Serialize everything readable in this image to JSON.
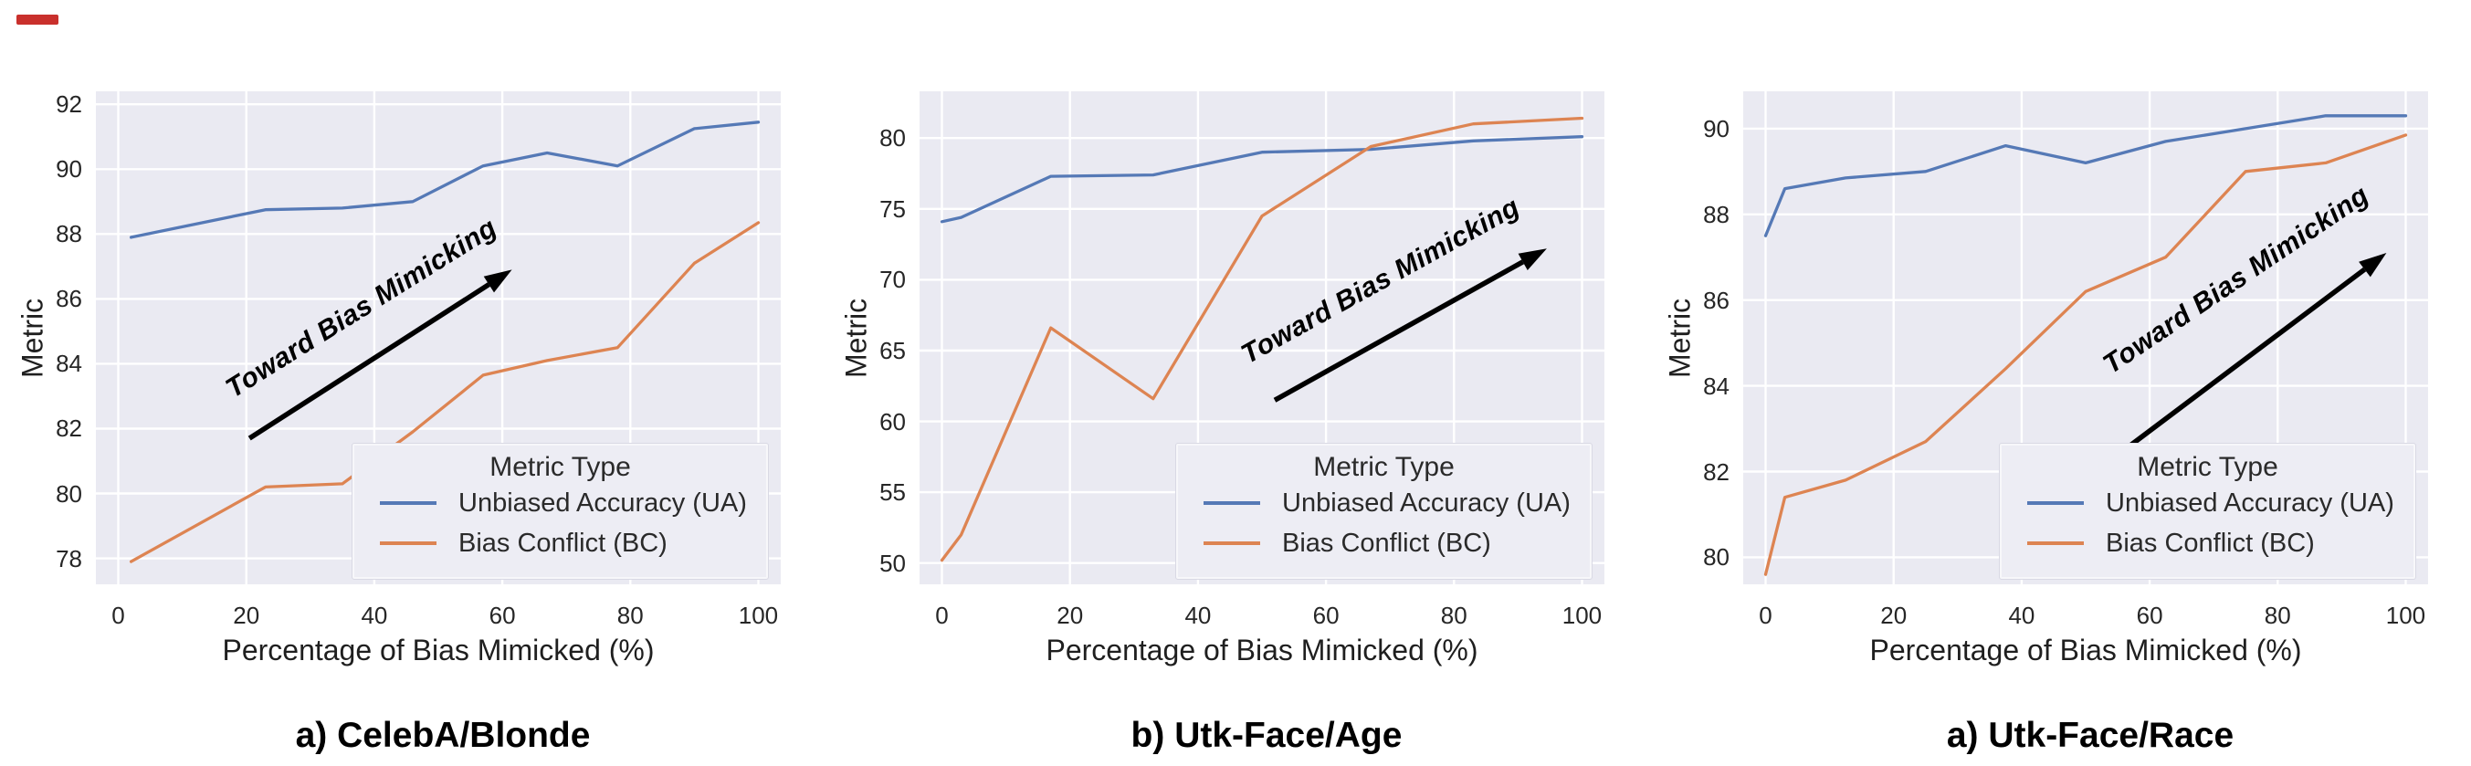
{
  "figure": {
    "background": "#ffffff",
    "plot_background": "#eaeaf2",
    "grid_color": "#ffffff",
    "arrow_color": "#000000",
    "corner_mark_color": "#c9302c",
    "accent_blue": "#5579b6",
    "accent_orange": "#dd8452"
  },
  "chart_data": [
    {
      "type": "line",
      "title": "a) CelebA/Blonde",
      "xlabel": "Percentage of Bias Mimicked (%)",
      "ylabel": "Metric",
      "xticks": [
        0,
        20,
        40,
        60,
        80,
        100
      ],
      "yticks": [
        78,
        80,
        82,
        84,
        86,
        88,
        90,
        92
      ],
      "xlim": [
        -3.5,
        103.5
      ],
      "ylim": [
        77.2,
        92.4
      ],
      "grid": "on",
      "legend": {
        "title": "Metric Type",
        "position": "lower right",
        "entries": [
          {
            "label": "Unbiased Accuracy (UA)",
            "color": "#5579b6"
          },
          {
            "label": "Bias Conflict (BC)",
            "color": "#dd8452"
          }
        ]
      },
      "annotation": {
        "text": "Toward Bias Mimicking",
        "arrow": [
          20.5,
          81.7,
          61.5,
          86.9
        ],
        "text_center": [
          38,
          85.55
        ],
        "angle_deg": -32
      },
      "series": [
        {
          "name": "Unbiased Accuracy (UA)",
          "color": "#5579b6",
          "x": [
            2,
            23,
            35,
            46,
            57,
            67,
            78,
            90,
            100
          ],
          "y": [
            87.9,
            88.75,
            88.8,
            89.0,
            90.1,
            90.5,
            90.1,
            91.25,
            91.45
          ]
        },
        {
          "name": "Bias Conflict (BC)",
          "color": "#dd8452",
          "x": [
            2,
            23,
            35,
            46,
            57,
            67,
            78,
            90,
            100
          ],
          "y": [
            77.9,
            80.2,
            80.3,
            81.9,
            83.65,
            84.1,
            84.5,
            87.1,
            88.35
          ]
        }
      ]
    },
    {
      "type": "line",
      "title": "b) Utk-Face/Age",
      "xlabel": "Percentage of Bias Mimicked (%)",
      "ylabel": "Metric",
      "xticks": [
        0,
        20,
        40,
        60,
        80,
        100
      ],
      "yticks": [
        50,
        55,
        60,
        65,
        70,
        75,
        80
      ],
      "xlim": [
        -3.5,
        103.5
      ],
      "ylim": [
        48.5,
        83.3
      ],
      "grid": "on",
      "legend": {
        "title": "Metric Type",
        "position": "lower right",
        "entries": [
          {
            "label": "Unbiased Accuracy (UA)",
            "color": "#5579b6"
          },
          {
            "label": "Bias Conflict (BC)",
            "color": "#dd8452"
          }
        ]
      },
      "annotation": {
        "text": "Toward Bias Mimicking",
        "arrow": [
          52,
          61.5,
          94.5,
          72.2
        ],
        "text_center": [
          68.5,
          69.6
        ],
        "angle_deg": -29
      },
      "series": [
        {
          "name": "Unbiased Accuracy (UA)",
          "color": "#5579b6",
          "x": [
            0,
            3,
            17,
            33,
            50,
            67,
            83,
            100
          ],
          "y": [
            74.1,
            74.4,
            77.3,
            77.4,
            79.0,
            79.2,
            79.8,
            80.1
          ]
        },
        {
          "name": "Bias Conflict (BC)",
          "color": "#dd8452",
          "x": [
            0,
            3,
            17,
            33,
            50,
            67,
            83,
            100
          ],
          "y": [
            50.2,
            52.0,
            66.6,
            61.6,
            74.5,
            79.4,
            81.0,
            81.4
          ]
        }
      ]
    },
    {
      "type": "line",
      "title": "a) Utk-Face/Race",
      "xlabel": "Percentage of Bias Mimicked (%)",
      "ylabel": "Metric",
      "xticks": [
        0,
        20,
        40,
        60,
        80,
        100
      ],
      "yticks": [
        80,
        82,
        84,
        86,
        88,
        90
      ],
      "xlim": [
        -3.5,
        103.5
      ],
      "ylim": [
        79.37,
        90.87
      ],
      "grid": "on",
      "legend": {
        "title": "Metric Type",
        "position": "lower right",
        "entries": [
          {
            "label": "Unbiased Accuracy (UA)",
            "color": "#5579b6"
          },
          {
            "label": "Bias Conflict (BC)",
            "color": "#dd8452"
          }
        ]
      },
      "annotation": {
        "text": "Toward Bias Mimicking",
        "arrow": [
          56,
          82.5,
          97,
          87.1
        ],
        "text_center": [
          73.5,
          86.35
        ],
        "angle_deg": -34
      },
      "series": [
        {
          "name": "Unbiased Accuracy (UA)",
          "color": "#5579b6",
          "x": [
            0,
            3,
            12.5,
            25,
            37.5,
            50,
            62.5,
            75,
            87.5,
            100
          ],
          "y": [
            87.5,
            88.6,
            88.85,
            89.0,
            89.6,
            89.2,
            89.7,
            90.0,
            90.3,
            90.3
          ]
        },
        {
          "name": "Bias Conflict (BC)",
          "color": "#dd8452",
          "x": [
            0,
            3,
            12.5,
            25,
            37.5,
            50,
            62.5,
            75,
            87.5,
            100
          ],
          "y": [
            79.6,
            81.4,
            81.8,
            82.7,
            84.4,
            86.2,
            87.0,
            89.0,
            89.2,
            89.85
          ]
        }
      ]
    }
  ]
}
